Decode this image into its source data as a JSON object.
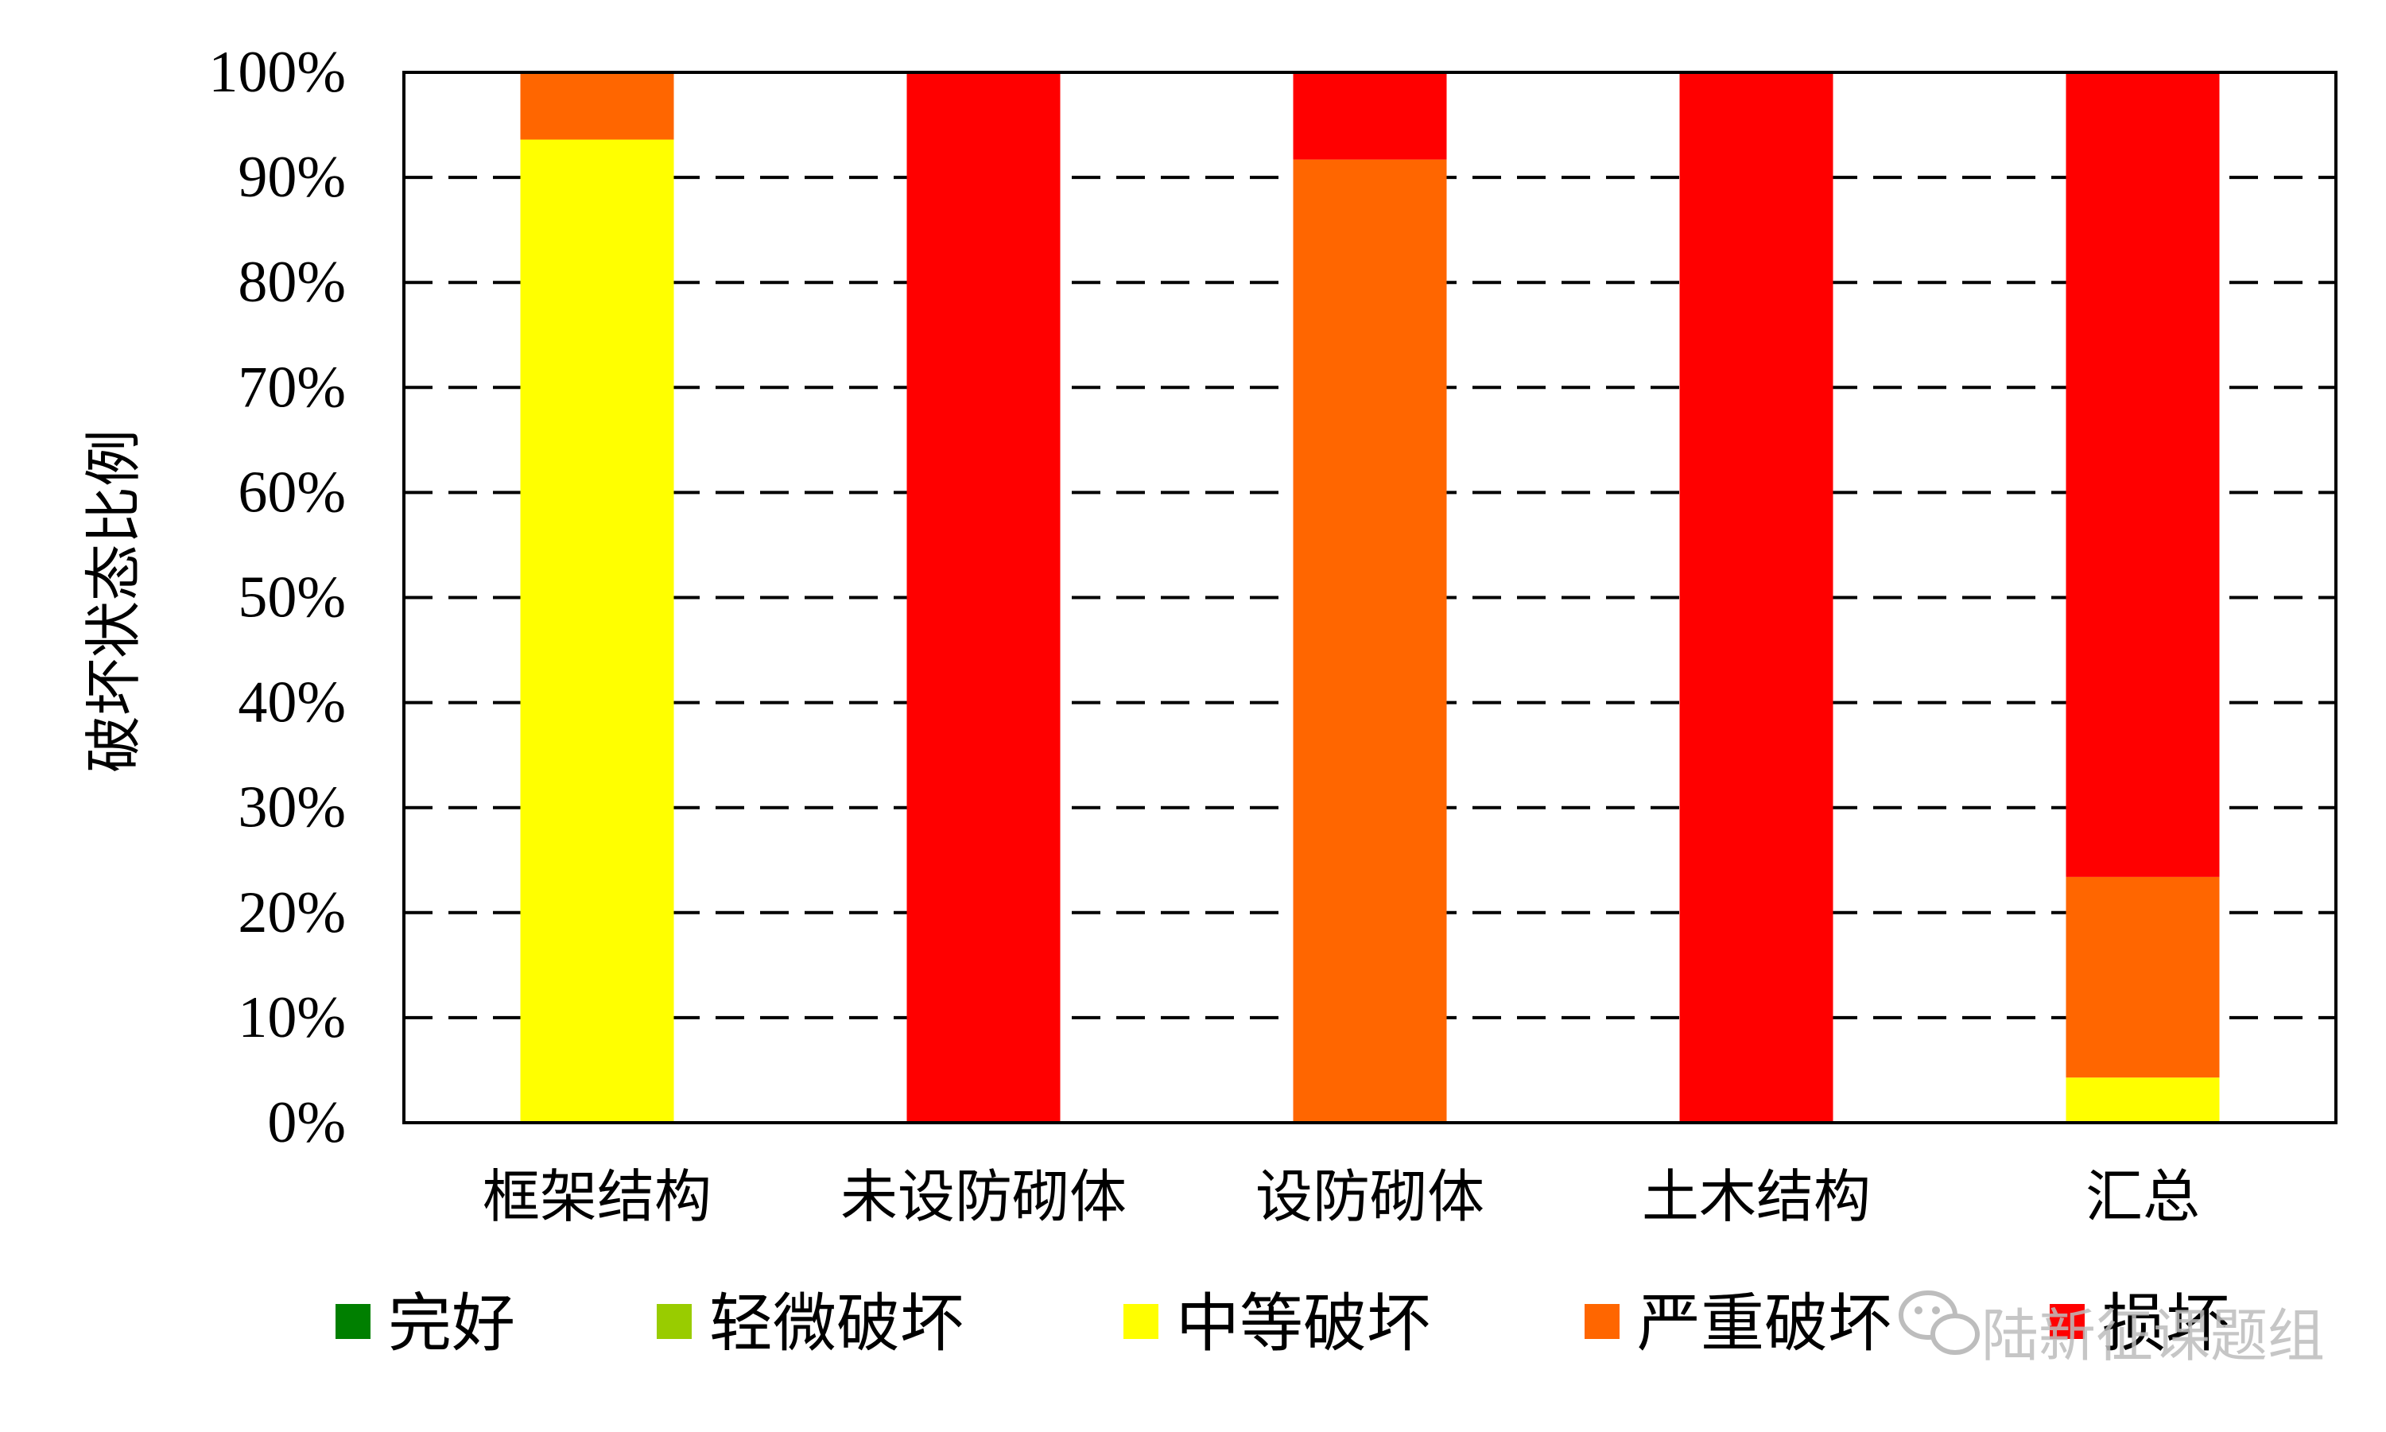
{
  "chart_data": {
    "type": "bar",
    "stacked": true,
    "percent_stacked": true,
    "title": "",
    "xlabel": "",
    "ylabel": "破坏状态比例",
    "ylim": [
      0,
      100
    ],
    "y_ticks": [
      "0%",
      "10%",
      "20%",
      "30%",
      "40%",
      "50%",
      "60%",
      "70%",
      "80%",
      "90%",
      "100%"
    ],
    "grid": "horizontal dashed",
    "legend_position": "bottom",
    "categories": [
      "框架结构",
      "未设防砌体",
      "设防砌体",
      "土木结构",
      "汇总"
    ],
    "series": [
      {
        "name": "完好",
        "color": "#007f00",
        "values": [
          0,
          0,
          0,
          0,
          0
        ]
      },
      {
        "name": "轻微破坏",
        "color": "#99cc00",
        "values": [
          0,
          0,
          0,
          0,
          0
        ]
      },
      {
        "name": "中等破坏",
        "color": "#ffff00",
        "values": [
          93.6,
          0,
          0,
          0,
          4.3
        ]
      },
      {
        "name": "严重破坏",
        "color": "#ff6600",
        "values": [
          6.4,
          0,
          91.7,
          0,
          19.1
        ]
      },
      {
        "name": "损坏",
        "color": "#ff0000",
        "values": [
          0,
          100,
          8.3,
          100,
          76.6
        ]
      }
    ]
  },
  "watermark": {
    "text": "陆新征课题组",
    "icon": "wechat-icon"
  }
}
